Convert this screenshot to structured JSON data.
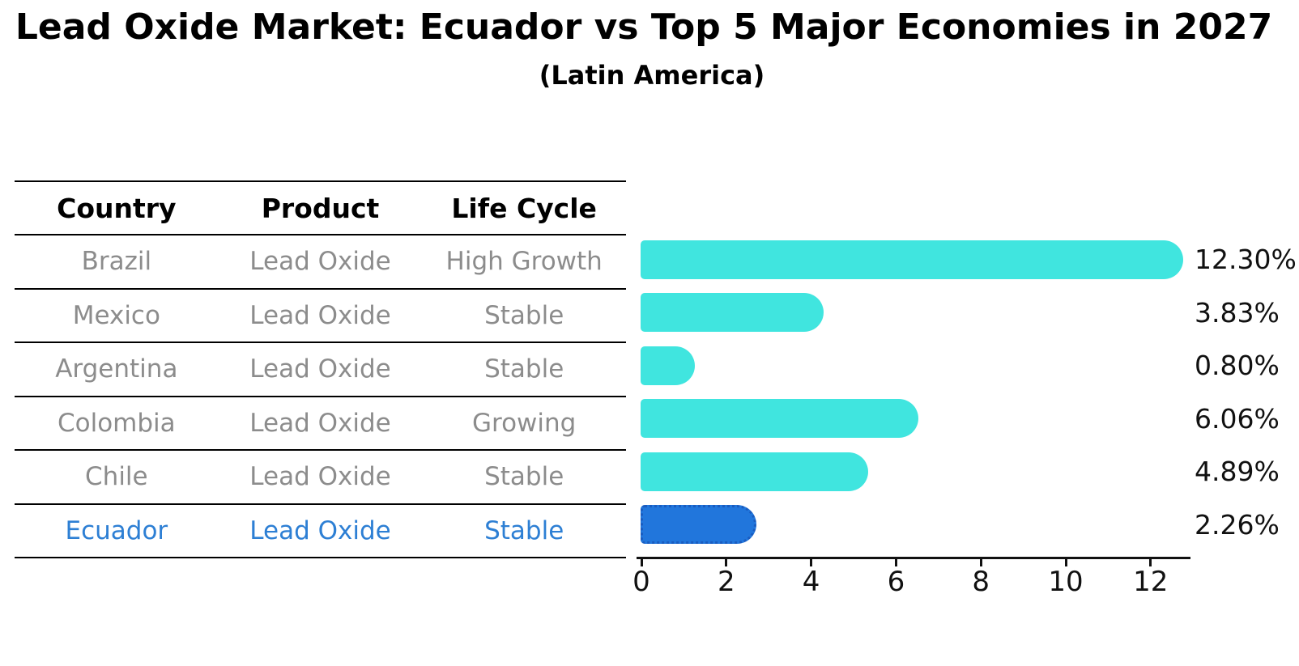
{
  "chart": {
    "title": "Lead Oxide Market: Ecuador vs Top 5 Major Economies in 2027",
    "subtitle": "(Latin America)"
  },
  "table": {
    "columns": [
      "Country",
      "Product",
      "Life Cycle"
    ],
    "rows": [
      {
        "country": "Brazil",
        "product": "Lead Oxide",
        "life_cycle": "High Growth",
        "highlighted": false
      },
      {
        "country": "Mexico",
        "product": "Lead Oxide",
        "life_cycle": "Stable",
        "highlighted": false
      },
      {
        "country": "Argentina",
        "product": "Lead Oxide",
        "life_cycle": "Stable",
        "highlighted": false
      },
      {
        "country": "Colombia",
        "product": "Lead Oxide",
        "life_cycle": "Growing",
        "highlighted": false
      },
      {
        "country": "Chile",
        "product": "Lead Oxide",
        "life_cycle": "Stable",
        "highlighted": false
      },
      {
        "country": "Ecuador",
        "product": "Lead Oxide",
        "life_cycle": "Stable",
        "highlighted": true
      }
    ]
  },
  "chart_data": {
    "type": "bar",
    "orientation": "horizontal",
    "title": "Lead Oxide Market: Ecuador vs Top 5 Major Economies in 2027",
    "subtitle": "(Latin America)",
    "categories": [
      "Brazil",
      "Mexico",
      "Argentina",
      "Colombia",
      "Chile",
      "Ecuador"
    ],
    "values": [
      12.3,
      3.83,
      0.8,
      6.06,
      4.89,
      2.26
    ],
    "value_labels": [
      "12.30%",
      "3.83%",
      "0.80%",
      "6.06%",
      "4.89%",
      "2.26%"
    ],
    "highlight_category": "Ecuador",
    "x_ticks": [
      0,
      2,
      4,
      6,
      8,
      10,
      12
    ],
    "xlim": [
      0,
      12.9
    ],
    "grid": false,
    "legend": "none",
    "colors": {
      "bar": "#40e5df",
      "highlight_bar": "#2176dc",
      "highlight_border": "#1a5cc0",
      "table_text": "#8c8c8c",
      "highlight_text": "#2d7fd4",
      "axis_text": "#111111"
    }
  }
}
